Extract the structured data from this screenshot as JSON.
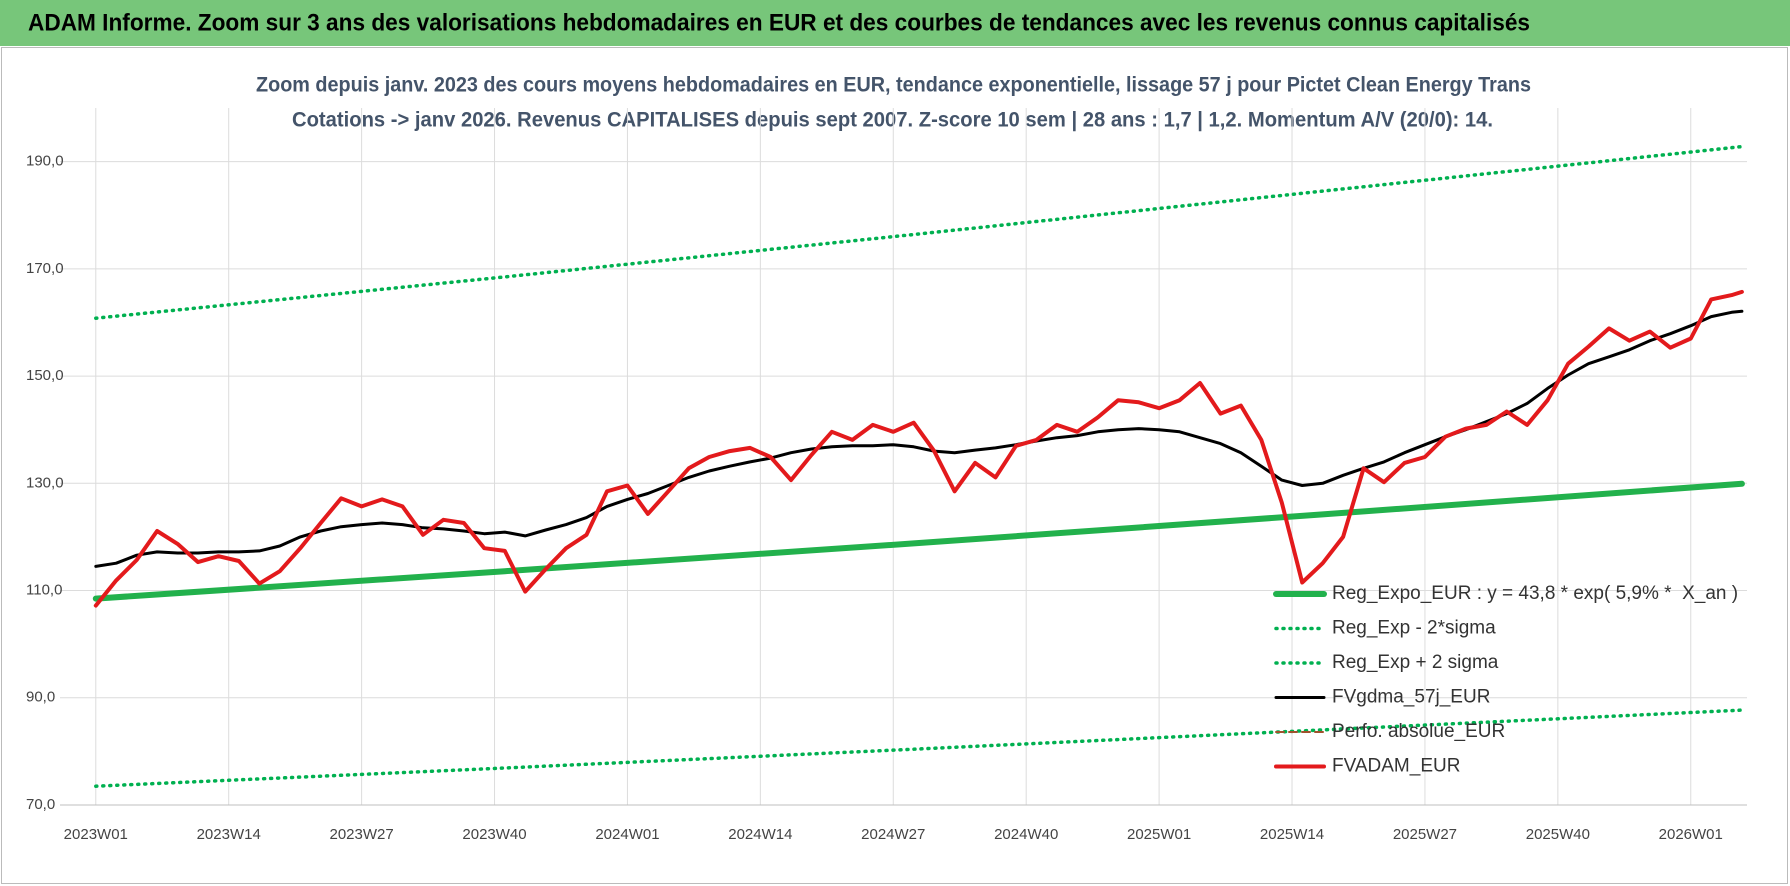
{
  "chart_data": {
    "type": "line",
    "title": "ADAM Informe. Zoom sur 3 ans des valorisations hebdomadaires en EUR et des courbes de tendances avec les revenus connus capitalisés",
    "subtitle": [
      "Zoom depuis janv. 2023 des cours moyens hebdomadaires en EUR, tendance exponentielle, lissage 57 j pour Pictet Clean Energy Trans",
      "Cotations -> janv 2026. Revenus CAPITALISES depuis sept 2007. Z-score 10 sem | 28 ans : 1,7 | 1,2. Momentum A/V (20/0): 14."
    ],
    "xlim": [
      -3.5,
      161.5
    ],
    "xticks": [
      {
        "value": 0,
        "label": "2023W01"
      },
      {
        "value": 13,
        "label": "2023W14"
      },
      {
        "value": 26,
        "label": "2023W27"
      },
      {
        "value": 39,
        "label": "2023W40"
      },
      {
        "value": 52,
        "label": "2024W01"
      },
      {
        "value": 65,
        "label": "2024W14"
      },
      {
        "value": 78,
        "label": "2024W27"
      },
      {
        "value": 91,
        "label": "2024W40"
      },
      {
        "value": 104,
        "label": "2025W01"
      },
      {
        "value": 117,
        "label": "2025W14"
      },
      {
        "value": 130,
        "label": "2025W27"
      },
      {
        "value": 143,
        "label": "2025W40"
      },
      {
        "value": 156,
        "label": "2026W01"
      }
    ],
    "ylim": [
      70,
      200
    ],
    "yticks": [
      {
        "value": 70,
        "label": "70,0"
      },
      {
        "value": 90,
        "label": "90,0"
      },
      {
        "value": 110,
        "label": "110,0"
      },
      {
        "value": 130,
        "label": "130,0"
      },
      {
        "value": 150,
        "label": "150,0"
      },
      {
        "value": 170,
        "label": "170,0"
      },
      {
        "value": 190,
        "label": "190,0"
      }
    ],
    "grid": true,
    "legend": "right",
    "series": [
      {
        "name": "Reg_Expo_EUR : y = 43,8 * exp( 5,9% *  X_an )",
        "color": "#22b14c",
        "style": "solid",
        "linewidth": 6,
        "x": [
          0,
          40,
          80,
          120,
          161
        ],
        "values": [
          108.5,
          113.6,
          118.8,
          124.2,
          129.9
        ]
      },
      {
        "name": "Reg_Exp - 2*sigma",
        "color": "#00b050",
        "style": "dotted",
        "linewidth": 3.5,
        "x": [
          0,
          40,
          80,
          120,
          161
        ],
        "values": [
          73.5,
          76.9,
          80.4,
          84.0,
          87.7
        ]
      },
      {
        "name": "Reg_Exp + 2 sigma",
        "color": "#00b050",
        "style": "dotted",
        "linewidth": 3.5,
        "x": [
          0,
          40,
          80,
          120,
          161
        ],
        "values": [
          160.8,
          168.5,
          176.4,
          184.5,
          192.8
        ]
      },
      {
        "name": "FVgdma_57j_EUR",
        "color": "#000000",
        "style": "solid",
        "linewidth": 3,
        "x": [
          0,
          2,
          4,
          6,
          8,
          10,
          12,
          14,
          16,
          18,
          20,
          22,
          24,
          26,
          28,
          30,
          32,
          34,
          36,
          38,
          40,
          42,
          44,
          46,
          48,
          50,
          52,
          54,
          56,
          58,
          60,
          62,
          64,
          66,
          68,
          70,
          72,
          74,
          76,
          78,
          80,
          82,
          84,
          86,
          88,
          90,
          92,
          94,
          96,
          98,
          100,
          102,
          104,
          106,
          108,
          110,
          112,
          114,
          116,
          118,
          120,
          122,
          124,
          126,
          128,
          130,
          132,
          134,
          136,
          138,
          140,
          142,
          144,
          146,
          148,
          150,
          152,
          154,
          156,
          158,
          160,
          161
        ],
        "values": [
          114.5,
          115.1,
          116.6,
          117.2,
          117.0,
          117.0,
          117.2,
          117.2,
          117.4,
          118.3,
          120.0,
          121.1,
          121.9,
          122.3,
          122.6,
          122.3,
          121.7,
          121.5,
          121.1,
          120.6,
          120.9,
          120.2,
          121.3,
          122.3,
          123.6,
          125.7,
          127.0,
          128.1,
          129.6,
          131.1,
          132.3,
          133.2,
          134.0,
          134.7,
          135.7,
          136.4,
          136.8,
          137.0,
          137.0,
          137.2,
          136.8,
          136.0,
          135.7,
          136.2,
          136.6,
          137.2,
          137.9,
          138.5,
          138.9,
          139.6,
          140.0,
          140.2,
          140.0,
          139.6,
          138.5,
          137.4,
          135.7,
          133.2,
          130.6,
          129.6,
          130.0,
          131.5,
          132.8,
          134.0,
          135.7,
          137.2,
          138.7,
          140.0,
          141.5,
          143.0,
          144.9,
          147.7,
          150.2,
          152.3,
          153.6,
          154.9,
          156.6,
          157.9,
          159.4,
          161.1,
          161.9,
          162.1
        ]
      },
      {
        "name": "Perfo. absolue_EUR",
        "color": "#a0522d",
        "style": "dashed",
        "linewidth": 2
      },
      {
        "name": "FVADAM_EUR",
        "color": "#e31a1c",
        "style": "solid",
        "linewidth": 4,
        "x": [
          0,
          2,
          4,
          6,
          8,
          10,
          12,
          14,
          16,
          18,
          20,
          22,
          24,
          26,
          28,
          30,
          32,
          34,
          36,
          38,
          40,
          42,
          44,
          46,
          48,
          50,
          52,
          54,
          56,
          58,
          60,
          62,
          64,
          66,
          68,
          70,
          72,
          74,
          76,
          78,
          80,
          82,
          84,
          86,
          88,
          90,
          92,
          94,
          96,
          98,
          100,
          102,
          104,
          106,
          108,
          110,
          112,
          114,
          116,
          118,
          120,
          122,
          124,
          126,
          128,
          130,
          132,
          134,
          136,
          138,
          140,
          142,
          144,
          146,
          148,
          150,
          152,
          154,
          156,
          158,
          160,
          161
        ],
        "values": [
          107.2,
          111.9,
          115.7,
          121.1,
          118.7,
          115.3,
          116.4,
          115.5,
          111.3,
          113.6,
          117.9,
          122.6,
          127.2,
          125.7,
          127.0,
          125.7,
          120.4,
          123.2,
          122.6,
          117.9,
          117.4,
          109.8,
          114.0,
          117.9,
          120.4,
          128.5,
          129.6,
          124.3,
          128.5,
          132.8,
          134.9,
          136.0,
          136.6,
          134.9,
          130.6,
          135.3,
          139.6,
          138.1,
          140.9,
          139.6,
          141.3,
          136.0,
          128.5,
          133.8,
          131.1,
          137.0,
          138.1,
          140.9,
          139.6,
          142.3,
          145.5,
          145.1,
          144.0,
          145.5,
          148.7,
          143.0,
          144.5,
          138.1,
          126.4,
          111.5,
          115.1,
          120.0,
          132.8,
          130.2,
          133.8,
          134.9,
          138.7,
          140.2,
          140.9,
          143.4,
          140.9,
          145.5,
          152.3,
          155.5,
          158.9,
          156.6,
          158.3,
          155.3,
          157.0,
          164.3,
          165.1,
          165.7
        ]
      }
    ]
  }
}
